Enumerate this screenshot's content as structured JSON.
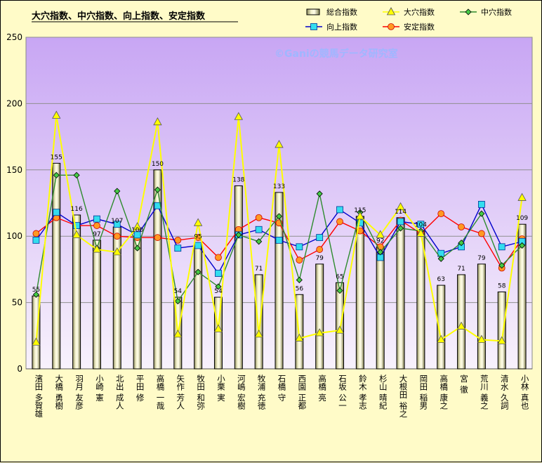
{
  "chart_data": {
    "type": "bar",
    "title": "大穴指数、中穴指数、向上指数、安定指数",
    "watermark": "©Ganiの競馬データ研究室",
    "ylim": [
      0,
      250
    ],
    "yticks": [
      0,
      50,
      100,
      150,
      200,
      250
    ],
    "grid": true,
    "legend_position": "top-right",
    "categories": [
      "濱田 多賀雄",
      "大橋 勇樹",
      "羽月 友彦",
      "小崎 憲",
      "北出 成人",
      "平田 修",
      "高橋 一哉",
      "矢作 芳人",
      "牧田 和弥",
      "小栗 実",
      "河嶋 宏樹",
      "牧浦 充徳",
      "石橋 守",
      "西園 正都",
      "高橋 亮",
      "石坂 公一",
      "鈴木 孝志",
      "杉山 晴紀",
      "大根田 裕之",
      "岡田 稲男",
      "高橋 康之",
      "宮 徹",
      "荒川 義之",
      "清水 久詞",
      "小林 真也"
    ],
    "series": [
      {
        "name": "総合指数",
        "kind": "bar",
        "color": "#000000",
        "values": [
          55,
          155,
          116,
          97,
          107,
          100,
          150,
          54,
          95,
          54,
          138,
          71,
          133,
          56,
          79,
          65,
          115,
          92,
          114,
          104,
          63,
          71,
          79,
          58,
          109
        ]
      },
      {
        "name": "大穴指数",
        "kind": "line",
        "color": "#ffff00",
        "marker": "triangle",
        "values": [
          20,
          191,
          101,
          90,
          88,
          107,
          186,
          26,
          110,
          30,
          190,
          26,
          169,
          23,
          27,
          29,
          115,
          101,
          122,
          102,
          22,
          32,
          22,
          21,
          129
        ]
      },
      {
        "name": "中穴指数",
        "kind": "line",
        "color": "#2e8b2e",
        "marker": "diamond",
        "values": [
          56,
          146,
          146,
          91,
          134,
          91,
          135,
          51,
          73,
          62,
          101,
          96,
          115,
          67,
          132,
          59,
          118,
          88,
          106,
          104,
          83,
          95,
          117,
          78,
          93
        ]
      },
      {
        "name": "向上指数",
        "kind": "line",
        "color": "#0000cc",
        "marker": "square",
        "values": [
          97,
          118,
          108,
          113,
          109,
          101,
          123,
          91,
          93,
          72,
          101,
          105,
          97,
          92,
          99,
          120,
          110,
          84,
          111,
          109,
          87,
          92,
          124,
          92,
          96
        ]
      },
      {
        "name": "安定指数",
        "kind": "line",
        "color": "#ff0000",
        "marker": "circle",
        "values": [
          102,
          114,
          108,
          108,
          100,
          99,
          99,
          97,
          99,
          84,
          105,
          114,
          110,
          82,
          90,
          111,
          104,
          92,
          112,
          102,
          117,
          107,
          102,
          76,
          98
        ]
      }
    ],
    "data_labels_series": "総合指数"
  }
}
